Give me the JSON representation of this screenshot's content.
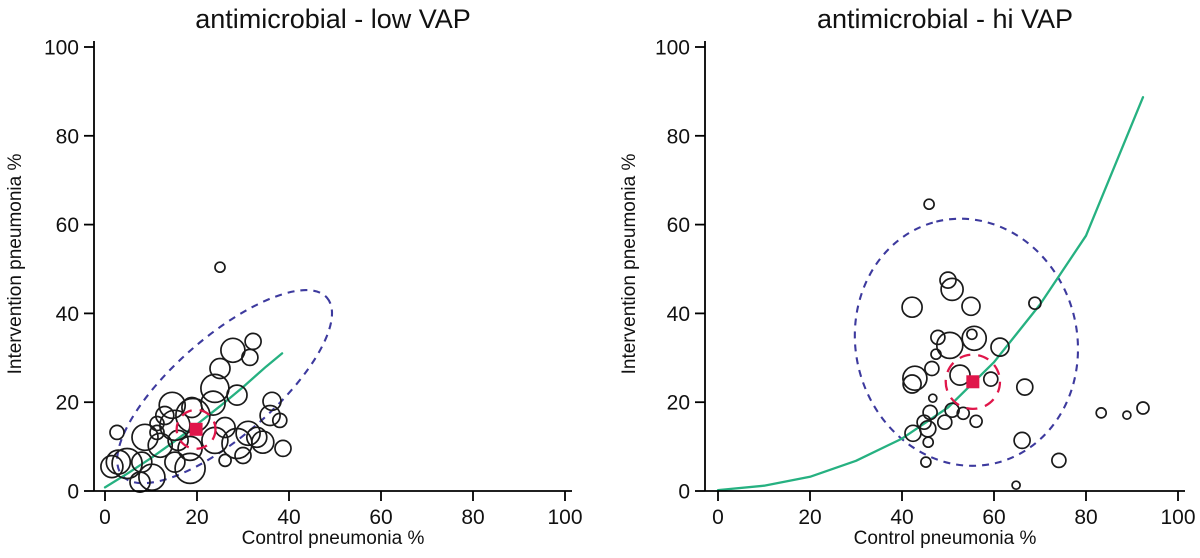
{
  "figure": {
    "background": "#ffffff",
    "colors": {
      "bubble_stroke": "#1a1a1a",
      "fit_curve": "#26b181",
      "tolerance_ellipse": "#3d3a9e",
      "mean_marker": "#e0164a"
    }
  },
  "chart_data": [
    {
      "type": "scatter",
      "panel": "low",
      "title": "antimicrobial - low VAP",
      "xlabel": "Control pneumonia %",
      "ylabel": "Intervention pneumonia %",
      "xlim": [
        0,
        100
      ],
      "ylim": [
        0,
        100
      ],
      "xticks": [
        0,
        20,
        40,
        60,
        80,
        100
      ],
      "yticks": [
        0,
        20,
        40,
        60,
        80,
        100
      ],
      "grid": false,
      "bubbles": [
        [
          25,
          50.4,
          5
        ],
        [
          27.8,
          31.7,
          12
        ],
        [
          32.2,
          33.7,
          8
        ],
        [
          31.5,
          30.1,
          8
        ],
        [
          25,
          27.6,
          10
        ],
        [
          23.9,
          23.1,
          14
        ],
        [
          28.7,
          21.6,
          10
        ],
        [
          36.3,
          20.2,
          9
        ],
        [
          35.9,
          17,
          10
        ],
        [
          38,
          15.9,
          7
        ],
        [
          38.7,
          9.6,
          8
        ],
        [
          26.1,
          14.3,
          10
        ],
        [
          31.1,
          13,
          12
        ],
        [
          34.3,
          11,
          11
        ],
        [
          30,
          8,
          8
        ],
        [
          28.7,
          10.7,
          15
        ],
        [
          23.9,
          11.4,
          13
        ],
        [
          26.1,
          6.9,
          6
        ],
        [
          33,
          12.1,
          10
        ],
        [
          12,
          10.3,
          12
        ],
        [
          15.9,
          11.4,
          10
        ],
        [
          18.5,
          9.6,
          12
        ],
        [
          15.2,
          6.5,
          10
        ],
        [
          18.5,
          5.1,
          15
        ],
        [
          10.2,
          3.1,
          13
        ],
        [
          7.6,
          2,
          10
        ],
        [
          19.1,
          17,
          17
        ],
        [
          15.2,
          14.8,
          15
        ],
        [
          23.5,
          19.8,
          12
        ],
        [
          18.9,
          18.8,
          10
        ],
        [
          14.6,
          19.3,
          13
        ],
        [
          13,
          17,
          9
        ],
        [
          11.3,
          15.2,
          7
        ],
        [
          11.3,
          13.2,
          7
        ],
        [
          8.7,
          12.1,
          13
        ],
        [
          8,
          6.5,
          10
        ],
        [
          2.6,
          13.2,
          7
        ],
        [
          2.9,
          6.5,
          12
        ],
        [
          4.8,
          6.2,
          15
        ],
        [
          1.5,
          5.5,
          11
        ]
      ],
      "fit_curve": {
        "points": [
          [
            0,
            0.8
          ],
          [
            5,
            4
          ],
          [
            10,
            7.4
          ],
          [
            15,
            11.1
          ],
          [
            20,
            15
          ],
          [
            25,
            19.1
          ],
          [
            30,
            23.4
          ],
          [
            35,
            28
          ],
          [
            38.5,
            31
          ]
        ]
      },
      "tolerance_ellipse": {
        "cx": 26,
        "cy": 23.5,
        "a": 30,
        "b": 11,
        "angle_deg": 41
      },
      "mean_marker": {
        "x": 19.8,
        "y": 13.9
      },
      "mean_circle_r": 4.3
    },
    {
      "type": "scatter",
      "panel": "hi",
      "title": "antimicrobial - hi VAP",
      "xlabel": "Control pneumonia %",
      "ylabel": "Intervention pneumonia %",
      "xlim": [
        0,
        100
      ],
      "ylim": [
        0,
        100
      ],
      "xticks": [
        0,
        20,
        40,
        60,
        80,
        100
      ],
      "yticks": [
        0,
        20,
        40,
        60,
        80,
        100
      ],
      "grid": false,
      "bubbles": [
        [
          45.9,
          64.6,
          5
        ],
        [
          50,
          47.5,
          8
        ],
        [
          50.9,
          45.4,
          11
        ],
        [
          42.2,
          41.4,
          10
        ],
        [
          55,
          41.6,
          9
        ],
        [
          68.9,
          42.3,
          6
        ],
        [
          47.8,
          34.6,
          7
        ],
        [
          50.4,
          32.8,
          13
        ],
        [
          55.7,
          34.4,
          12
        ],
        [
          55.2,
          35.3,
          5
        ],
        [
          61.3,
          32.4,
          9
        ],
        [
          47.4,
          30.8,
          5
        ],
        [
          46.5,
          27.6,
          7
        ],
        [
          42.8,
          25.4,
          12
        ],
        [
          42.2,
          24.1,
          9
        ],
        [
          52.6,
          26.1,
          10
        ],
        [
          59.3,
          25.2,
          7
        ],
        [
          66.7,
          23.4,
          8
        ],
        [
          46.7,
          20.9,
          4
        ],
        [
          46.1,
          17.7,
          7
        ],
        [
          44.8,
          15.5,
          7
        ],
        [
          45.6,
          14,
          8
        ],
        [
          50.9,
          18.2,
          7
        ],
        [
          53.3,
          17.5,
          6
        ],
        [
          49.3,
          15.5,
          7
        ],
        [
          56.1,
          15.7,
          6
        ],
        [
          42.4,
          13,
          8
        ],
        [
          45.7,
          11,
          5
        ],
        [
          66.1,
          11.4,
          8
        ],
        [
          45.2,
          6.5,
          5
        ],
        [
          74.1,
          6.9,
          7
        ],
        [
          64.8,
          1.3,
          4
        ],
        [
          83.3,
          17.6,
          5
        ],
        [
          88.9,
          17.1,
          4
        ],
        [
          92.4,
          18.7,
          6
        ]
      ],
      "fit_curve": {
        "points": [
          [
            0,
            0.2
          ],
          [
            10,
            1.2
          ],
          [
            20,
            3.2
          ],
          [
            30,
            6.8
          ],
          [
            40,
            11.8
          ],
          [
            50,
            18.8
          ],
          [
            60,
            29
          ],
          [
            70,
            42
          ],
          [
            80,
            57.5
          ],
          [
            92.4,
            88.7
          ]
        ]
      },
      "tolerance_ellipse": {
        "cx": 54,
        "cy": 33.5,
        "a": 27.5,
        "b": 24.5,
        "angle_deg": 104
      },
      "mean_marker": {
        "x": 55.4,
        "y": 24.6
      },
      "mean_circle_r": 6
    }
  ]
}
